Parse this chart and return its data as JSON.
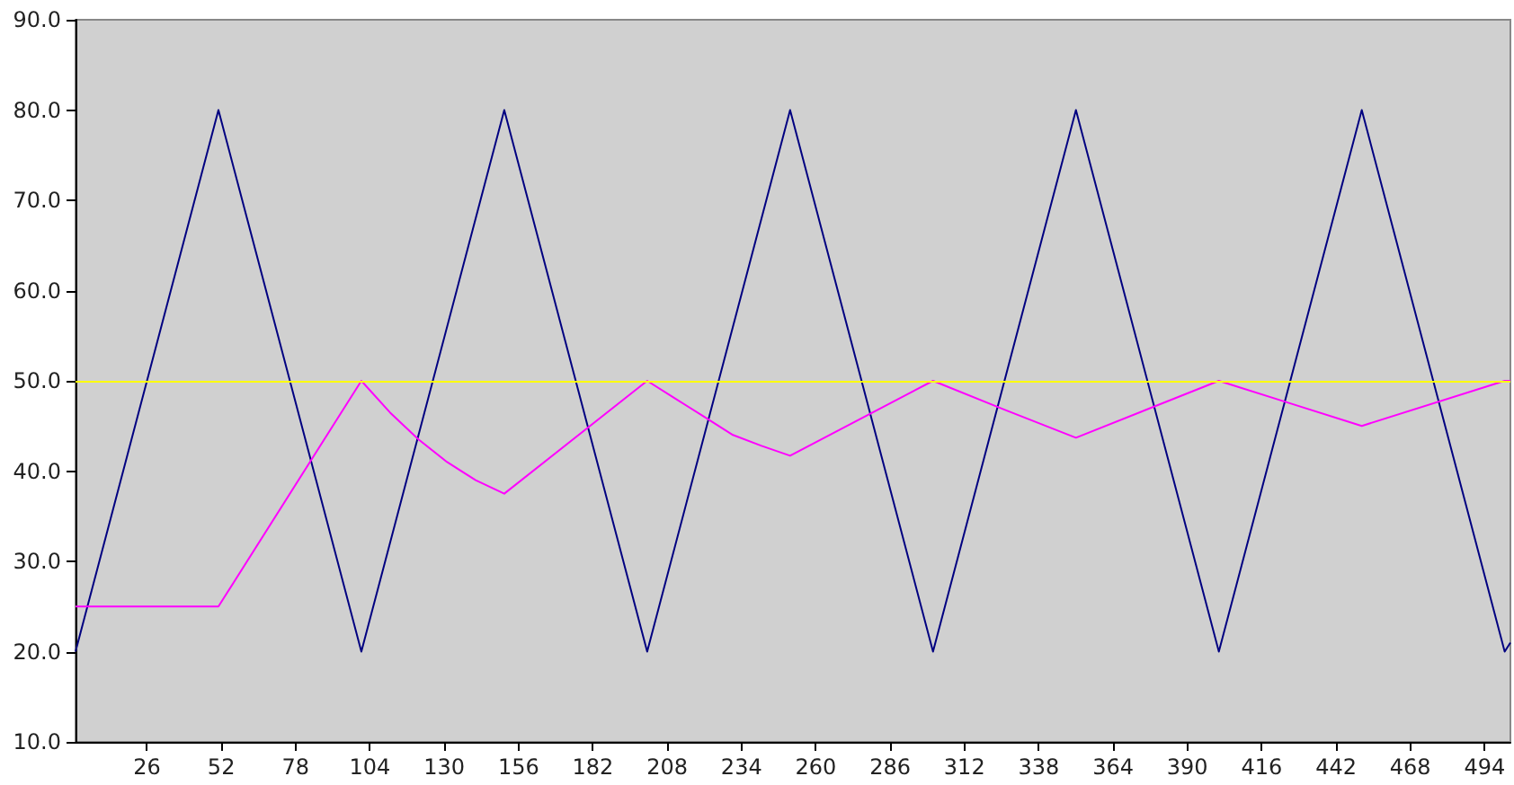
{
  "chart_data": {
    "type": "line",
    "xlim": [
      1,
      503
    ],
    "ylim": [
      10,
      90
    ],
    "xticks": [
      26,
      52,
      78,
      104,
      130,
      156,
      182,
      208,
      234,
      260,
      286,
      312,
      338,
      364,
      390,
      416,
      442,
      468,
      494
    ],
    "yticks": [
      {
        "value": 10,
        "label": "10.0"
      },
      {
        "value": 20,
        "label": "20.0"
      },
      {
        "value": 30,
        "label": "30.0"
      },
      {
        "value": 40,
        "label": "40.0"
      },
      {
        "value": 50,
        "label": "50.0"
      },
      {
        "value": 60,
        "label": "60.0"
      },
      {
        "value": 70,
        "label": "70.0"
      },
      {
        "value": 80,
        "label": "80.0"
      },
      {
        "value": 90,
        "label": "90.0"
      }
    ],
    "series": [
      {
        "color": "#000080",
        "x": [
          1,
          51,
          101,
          151,
          201,
          251,
          301,
          351,
          401,
          451,
          501,
          503
        ],
        "values": [
          20,
          80,
          20,
          80,
          20,
          80,
          20,
          80,
          20,
          80,
          20,
          21
        ]
      },
      {
        "color": "#ff00ff",
        "x": [
          1,
          51,
          101,
          111,
          121,
          131,
          141,
          151,
          201,
          211,
          221,
          231,
          241,
          251,
          301,
          326,
          351,
          401,
          426,
          451,
          501,
          503
        ],
        "values": [
          25,
          25,
          50,
          46.5,
          43.5,
          41,
          39,
          37.5,
          50,
          48,
          46,
          44,
          42.8,
          41.7,
          50,
          46.8,
          43.7,
          50,
          47.5,
          45,
          50,
          50
        ]
      }
    ],
    "ref_lines": [
      {
        "axis": "y",
        "value": 50,
        "color": "#ffff00"
      }
    ],
    "grid": false,
    "marker": "none",
    "line_style": "solid"
  }
}
